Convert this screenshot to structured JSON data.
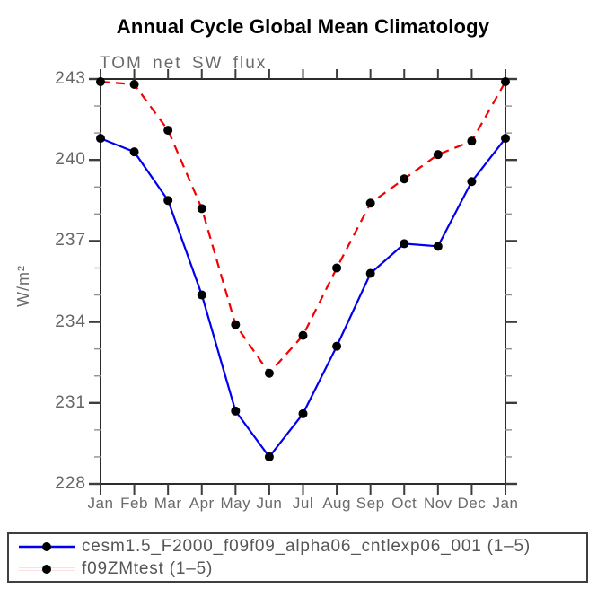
{
  "chart_data": {
    "type": "line",
    "title": "Annual Cycle Global Mean Climatology",
    "subtitle": "TOM net SW flux",
    "ylabel": "W/m²",
    "xlabel": "",
    "categories": [
      "Jan",
      "Feb",
      "Mar",
      "Apr",
      "May",
      "Jun",
      "Jul",
      "Aug",
      "Sep",
      "Oct",
      "Nov",
      "Dec",
      "Jan"
    ],
    "yaxis": {
      "min": 228,
      "max": 243,
      "major_step": 3,
      "minor_step": 1,
      "tick_labels": [
        "243",
        "240",
        "237",
        "234",
        "231",
        "228"
      ]
    },
    "grid": false,
    "legend_position": "bottom-left-box",
    "series": [
      {
        "name": "cesm1.5_F2000_f09f09_alpha06_cntlexp06_001",
        "label": "cesm1.5_F2000_f09f09_alpha06_cntlexp06_001 (1–5)",
        "color": "#0000ee",
        "line_style": "solid",
        "dash": "none",
        "marker": "filled-circle",
        "marker_color": "#000000",
        "values": [
          240.8,
          240.3,
          238.5,
          235.0,
          230.7,
          229.0,
          230.6,
          233.1,
          235.8,
          236.9,
          236.8,
          239.2,
          240.8
        ]
      },
      {
        "name": "f09ZMtest",
        "label": "f09ZMtest (1–5)",
        "color": "#f40000",
        "line_style": "dashed",
        "dash": "10,7",
        "marker": "filled-circle",
        "marker_color": "#000000",
        "values": [
          242.9,
          242.8,
          241.1,
          238.2,
          233.9,
          232.1,
          233.5,
          236.0,
          238.4,
          239.3,
          240.2,
          240.7,
          242.9
        ]
      }
    ],
    "colors": {
      "frame": "#2b2b2b",
      "tick_major": "#3c3c3c",
      "tick_minor": "#909090",
      "axis_text": "#666666",
      "title_text": "#000000",
      "legend_text": "#555555",
      "legend_border": "#3f3f3f"
    }
  }
}
